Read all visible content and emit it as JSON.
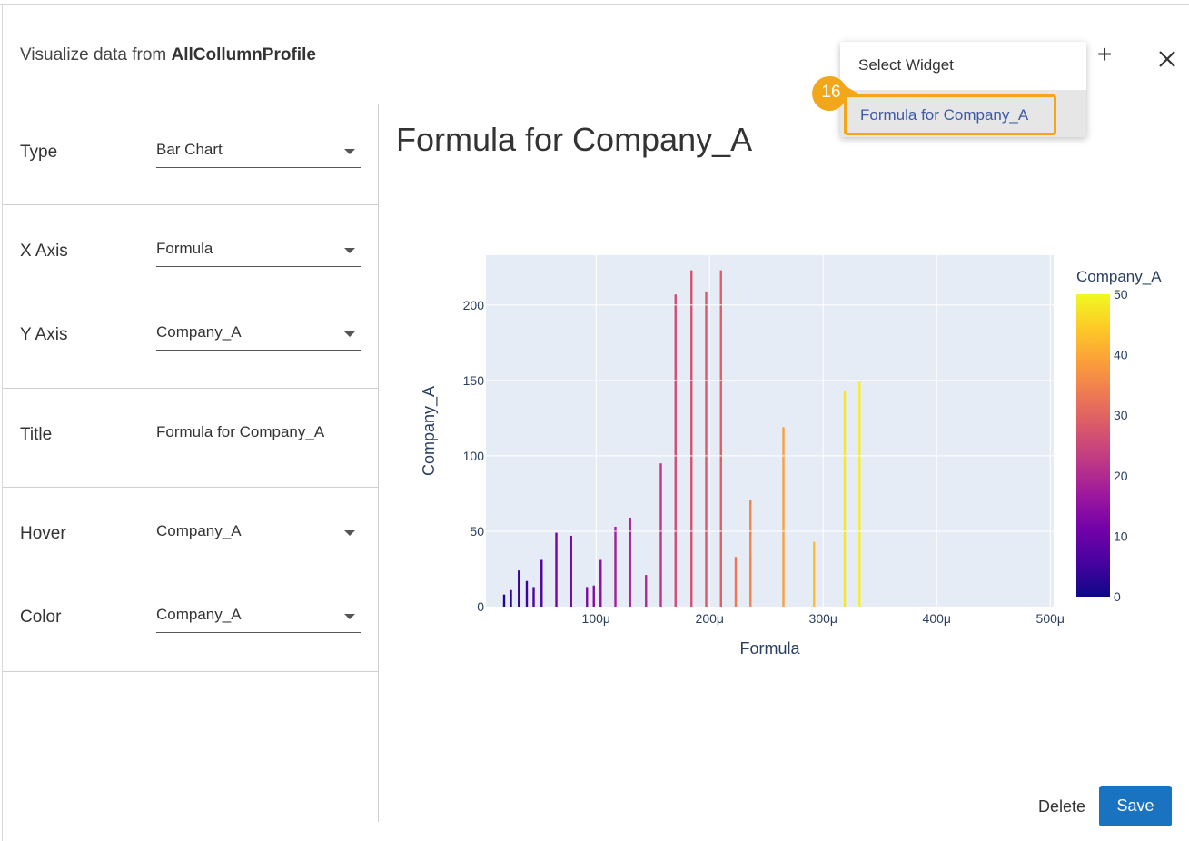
{
  "header": {
    "title_prefix": "Visualize data from ",
    "title_source": "AllCollumnProfile",
    "add_label": "+"
  },
  "form": {
    "type": {
      "label": "Type",
      "value": "Bar Chart"
    },
    "x_axis": {
      "label": "X Axis",
      "value": "Formula"
    },
    "y_axis": {
      "label": "Y Axis",
      "value": "Company_A"
    },
    "title": {
      "label": "Title",
      "value": "Formula for Company_A"
    },
    "hover": {
      "label": "Hover",
      "value": "Company_A"
    },
    "color": {
      "label": "Color",
      "value": "Company_A"
    }
  },
  "dropdown": {
    "header": "Select Widget",
    "items": [
      {
        "label": "Formula for Company_A"
      }
    ],
    "step_badge": "16"
  },
  "actions": {
    "delete_label": "Delete",
    "save_label": "Save"
  },
  "colors": {
    "accent": "#1a73c0",
    "highlight": "#f2a71b",
    "plot_bg": "#e5ecf6"
  },
  "chart_data": {
    "type": "bar",
    "title": "Formula for Company_A",
    "xlabel": "Formula",
    "ylabel": "Company_A",
    "xlim": [
      3e-06,
      0.000503
    ],
    "ylim": [
      0,
      233
    ],
    "x_ticks": [
      0.0001,
      0.0002,
      0.0003,
      0.0004,
      0.0005
    ],
    "x_tick_labels": [
      "100μ",
      "200μ",
      "300μ",
      "400μ",
      "500μ"
    ],
    "y_ticks": [
      0,
      50,
      100,
      150,
      200
    ],
    "y_tick_labels": [
      "0",
      "50",
      "100",
      "150",
      "200"
    ],
    "colorbar": {
      "title": "Company_A",
      "range": [
        0,
        50
      ],
      "ticks": [
        "0",
        "10",
        "20",
        "30",
        "40",
        "50"
      ]
    },
    "x": [
      1.9e-05,
      2.5e-05,
      3.2e-05,
      3.9e-05,
      4.5e-05,
      5.2e-05,
      6.5e-05,
      7.8e-05,
      9.2e-05,
      9.8e-05,
      0.000104,
      0.000117,
      0.00013,
      0.000144,
      0.000157,
      0.00017,
      0.000184,
      0.000197,
      0.00021,
      0.000223,
      0.000236,
      0.000265,
      0.000292,
      0.000319,
      0.000332
    ],
    "values": [
      8,
      11,
      24,
      17,
      13,
      31,
      49,
      47,
      13,
      14,
      31,
      53,
      59,
      21,
      95,
      207,
      223,
      209,
      223,
      33,
      71,
      119,
      43,
      143,
      149
    ],
    "color_values": [
      2,
      3,
      4,
      5,
      6,
      7,
      11,
      12,
      13,
      14,
      15,
      18,
      19,
      20,
      22,
      26,
      27,
      28,
      29,
      33,
      35,
      39,
      43,
      48,
      49
    ]
  }
}
